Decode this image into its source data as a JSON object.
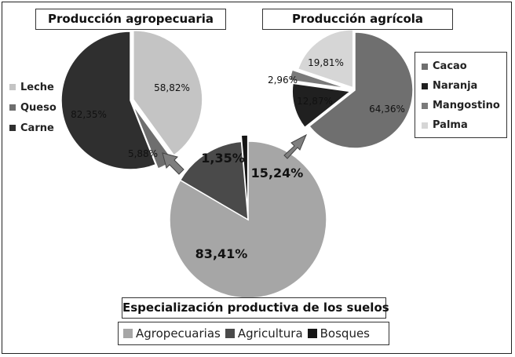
{
  "colors": {
    "leche": "#c4c4c4",
    "queso": "#6e6e6e",
    "carne": "#2f2f2f",
    "cacao": "#6f6f6f",
    "naranja": "#202020",
    "mangostino": "#7a7a7a",
    "palma": "#d6d6d6",
    "agropecuarias": "#a6a6a6",
    "agricultura": "#4a4a4a",
    "bosques": "#151515",
    "arrow": "#7f7f7f"
  },
  "chart_data": [
    {
      "type": "pie",
      "title": "Producción agropecuaria",
      "categories": [
        "Leche",
        "Queso",
        "Carne"
      ],
      "values": [
        58.82,
        5.88,
        82.35
      ],
      "labels": [
        "58,82%",
        "5,88%",
        "82,35%"
      ],
      "legend": "left"
    },
    {
      "type": "pie",
      "title": "Producción agrícola",
      "categories": [
        "Cacao",
        "Naranja",
        "Mangostino",
        "Palma"
      ],
      "values": [
        64.36,
        12.87,
        2.96,
        19.81
      ],
      "labels": [
        "64,36%",
        "12,87%",
        "2,96%",
        "19,81%"
      ],
      "legend": "right"
    },
    {
      "type": "pie",
      "title": "Especialización productiva de los suelos",
      "categories": [
        "Agropecuarias",
        "Agricultura",
        "Bosques"
      ],
      "values": [
        83.41,
        15.24,
        1.35
      ],
      "labels": [
        "83,41%",
        "15,24%",
        "1,35%"
      ],
      "legend": "bottom"
    }
  ]
}
